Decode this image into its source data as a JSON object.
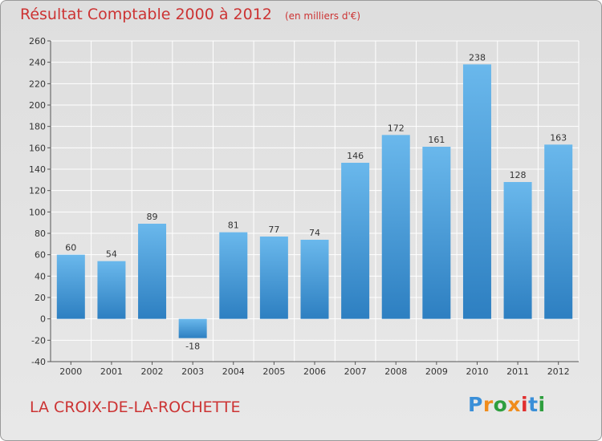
{
  "header": {
    "title": "Résultat Comptable 2000 à 2012",
    "subtitle": "(en milliers d'€)"
  },
  "footer": {
    "commune": "LA CROIX-DE-LA-ROCHETTE",
    "logo_text": "Proxiti",
    "logo_colors": [
      "#3a8fd8",
      "#f08c1c",
      "#2e9e3e",
      "#f08c1c",
      "#e02f2f",
      "#3a8fd8",
      "#2e9e3e"
    ]
  },
  "colors": {
    "bar_top": "#6ab8ec",
    "bar_bottom": "#2d7fc1",
    "title": "#cc3333",
    "grid": "#ffffff",
    "text": "#333333"
  },
  "chart_data": {
    "type": "bar",
    "title": "Résultat Comptable 2000 à 2012",
    "subtitle": "(en milliers d'€)",
    "xlabel": "",
    "ylabel": "",
    "categories": [
      "2000",
      "2001",
      "2002",
      "2003",
      "2004",
      "2005",
      "2006",
      "2007",
      "2008",
      "2009",
      "2010",
      "2011",
      "2012"
    ],
    "values": [
      60,
      54,
      89,
      -18,
      81,
      77,
      74,
      146,
      172,
      161,
      238,
      128,
      163
    ],
    "value_labels": [
      "60",
      "54",
      "89",
      "-18",
      "81",
      "77",
      "74",
      "146",
      "172",
      "161",
      "238",
      "128",
      "163"
    ],
    "ylim": [
      -40,
      260
    ],
    "yticks": [
      -40,
      -20,
      0,
      20,
      40,
      60,
      80,
      100,
      120,
      140,
      160,
      180,
      200,
      220,
      240,
      260
    ],
    "grid": true,
    "legend": "none"
  }
}
